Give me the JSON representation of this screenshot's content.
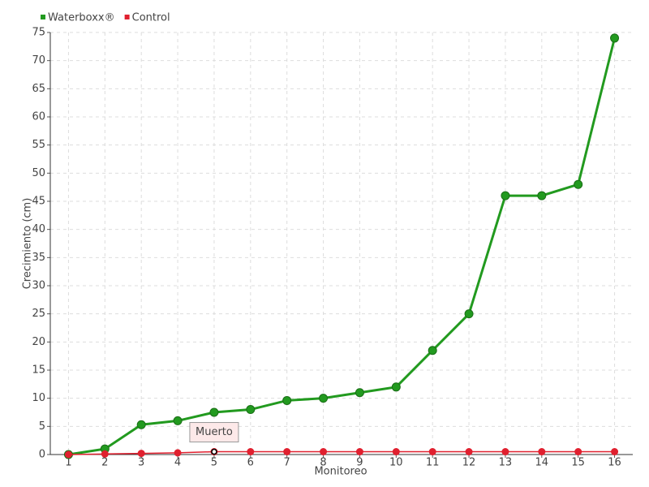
{
  "chart_data": {
    "type": "line",
    "categories": [
      "1",
      "2",
      "3",
      "4",
      "5",
      "6",
      "7",
      "8",
      "9",
      "10",
      "11",
      "12",
      "13",
      "14",
      "15",
      "16"
    ],
    "series": [
      {
        "name": "Waterboxx®",
        "color": "#229a1f",
        "values": [
          0,
          1,
          5.3,
          6,
          7.5,
          8,
          9.6,
          10,
          11,
          12,
          18.5,
          25,
          46,
          46,
          48,
          74
        ]
      },
      {
        "name": "Control",
        "color": "#e0202f",
        "values": [
          0,
          0.1,
          0.2,
          0.3,
          0.5,
          0.5,
          0.5,
          0.5,
          0.5,
          0.5,
          0.5,
          0.5,
          0.5,
          0.5,
          0.5,
          0.5
        ]
      }
    ],
    "ylim": [
      0,
      75
    ],
    "yticks": [
      0,
      5,
      10,
      15,
      20,
      25,
      30,
      35,
      40,
      45,
      50,
      55,
      60,
      65,
      70,
      75
    ],
    "y_label": "Crecimiento (cm)",
    "x_label": "Monitoreo",
    "annotations": [
      {
        "text": "Muerto",
        "category": "5",
        "series": "Control"
      }
    ],
    "grid": true,
    "legend": "top-left"
  }
}
